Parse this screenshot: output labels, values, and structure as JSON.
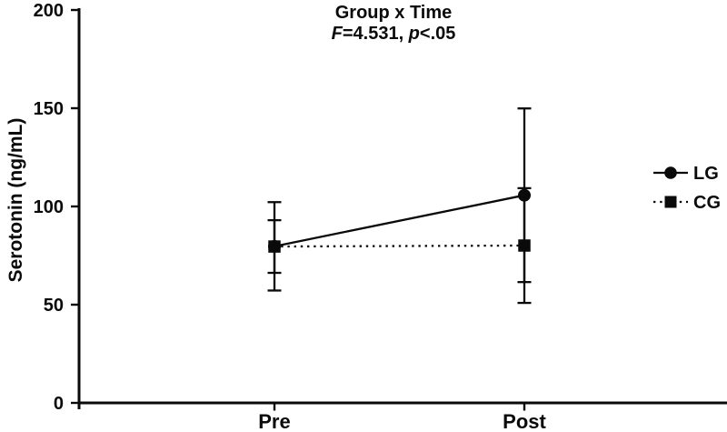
{
  "chart_data": {
    "type": "line",
    "title": "Group x Time",
    "subtitle_parts": {
      "f_label": "F",
      "f_rest": "=4.531, ",
      "p_label": "p",
      "p_rest": "<.05"
    },
    "ylabel": "Serotonin (ng/mL)",
    "ylim": [
      0,
      200
    ],
    "yticks": [
      0,
      50,
      100,
      150,
      200
    ],
    "categories": [
      "Pre",
      "Post"
    ],
    "series": [
      {
        "name": "LG",
        "marker": "circle",
        "line_style": "solid",
        "values": [
          79.7,
          105.7
        ],
        "errors": [
          22.5,
          44.2
        ]
      },
      {
        "name": "CG",
        "marker": "square",
        "line_style": "dotted",
        "values": [
          79.6,
          80.1
        ],
        "errors": [
          13.4,
          29.2
        ]
      }
    ],
    "legend_position": "right",
    "axis_color": "#0a0a0a",
    "series_color": "#0a0a0a",
    "background_color": "#ffffff",
    "grid": "off",
    "error_bar_style": "caps"
  }
}
